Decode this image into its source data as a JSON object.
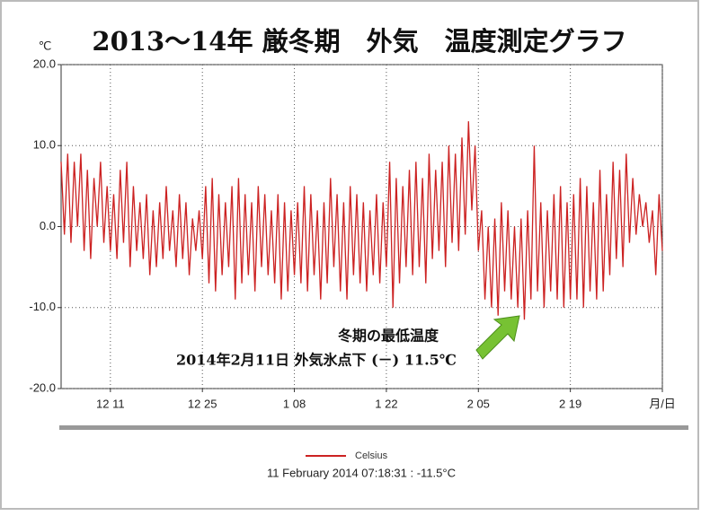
{
  "chart_data": {
    "type": "line",
    "title": "2013～14年 厳冬期　外気　温度測定グラフ",
    "y_unit": "℃",
    "annotations": [
      "冬期の最低温度",
      "2014年2月11日 外気氷点下 (－) 11.5℃"
    ],
    "footer": "11 February 2014 07:18:31 : -11.5°C",
    "xlim": [
      0,
      183
    ],
    "xticks": [
      {
        "value": 15,
        "label": "12 11"
      },
      {
        "value": 43,
        "label": "12 25"
      },
      {
        "value": 71,
        "label": "1 08"
      },
      {
        "value": 99,
        "label": "1 22"
      },
      {
        "value": 127,
        "label": "2 05"
      },
      {
        "value": 155,
        "label": "2 19"
      },
      {
        "value": 183,
        "label": "月/日"
      }
    ],
    "ylim": [
      -20,
      20
    ],
    "yticks": [
      {
        "value": -20,
        "label": "-20.0"
      },
      {
        "value": -10,
        "label": "-10.0"
      },
      {
        "value": 0,
        "label": "0.0"
      },
      {
        "value": 10,
        "label": "10.0"
      },
      {
        "value": 20,
        "label": "20.0"
      }
    ],
    "grid": true,
    "series": [
      {
        "name": "Celsius",
        "color": "#cc2222",
        "values": [
          8,
          -1,
          9,
          -2,
          8,
          0,
          9,
          -3,
          7,
          -4,
          6,
          0,
          8,
          -2,
          5,
          -3,
          4,
          -4,
          7,
          -2,
          8,
          -5,
          5,
          -3,
          3,
          -4,
          4,
          -6,
          2,
          -5,
          3,
          -4,
          5,
          -3,
          2,
          -5,
          4,
          -4,
          3,
          -6,
          1,
          -3,
          2,
          -4,
          5,
          -7,
          6,
          -8,
          4,
          -6,
          3,
          -5,
          5,
          -9,
          6,
          -7,
          4,
          -6,
          3,
          -8,
          5,
          -5,
          4,
          -6,
          2,
          -7,
          4,
          -9,
          3,
          -8,
          2,
          -6,
          3,
          -7,
          5,
          -8,
          4,
          -6,
          2,
          -9,
          3,
          -7,
          6,
          -5,
          4,
          -8,
          3,
          -9,
          5,
          -6,
          4,
          -7,
          3,
          -8,
          2,
          -6,
          4,
          -7,
          3,
          -5,
          8,
          -10,
          6,
          -7,
          5,
          -5,
          7,
          -6,
          8,
          -5,
          6,
          -7,
          9,
          -4,
          7,
          -3,
          8,
          -5,
          10,
          -2,
          9,
          -3,
          11,
          -1,
          13,
          2,
          10,
          -3,
          2,
          -9,
          0,
          -10,
          1,
          -11,
          3,
          -8,
          2,
          -9,
          0,
          -10,
          1,
          -11.5,
          2,
          -9,
          10,
          -8,
          3,
          -10,
          2,
          -8,
          4,
          -9,
          5,
          -10,
          3,
          -9,
          4,
          -9,
          6,
          -10,
          5,
          -8,
          3,
          -9,
          7,
          -8,
          4,
          -6,
          8,
          -4,
          7,
          -5,
          9,
          -2,
          6,
          -1,
          4,
          0,
          3,
          -2,
          2,
          -6,
          4,
          -3
        ]
      }
    ]
  }
}
